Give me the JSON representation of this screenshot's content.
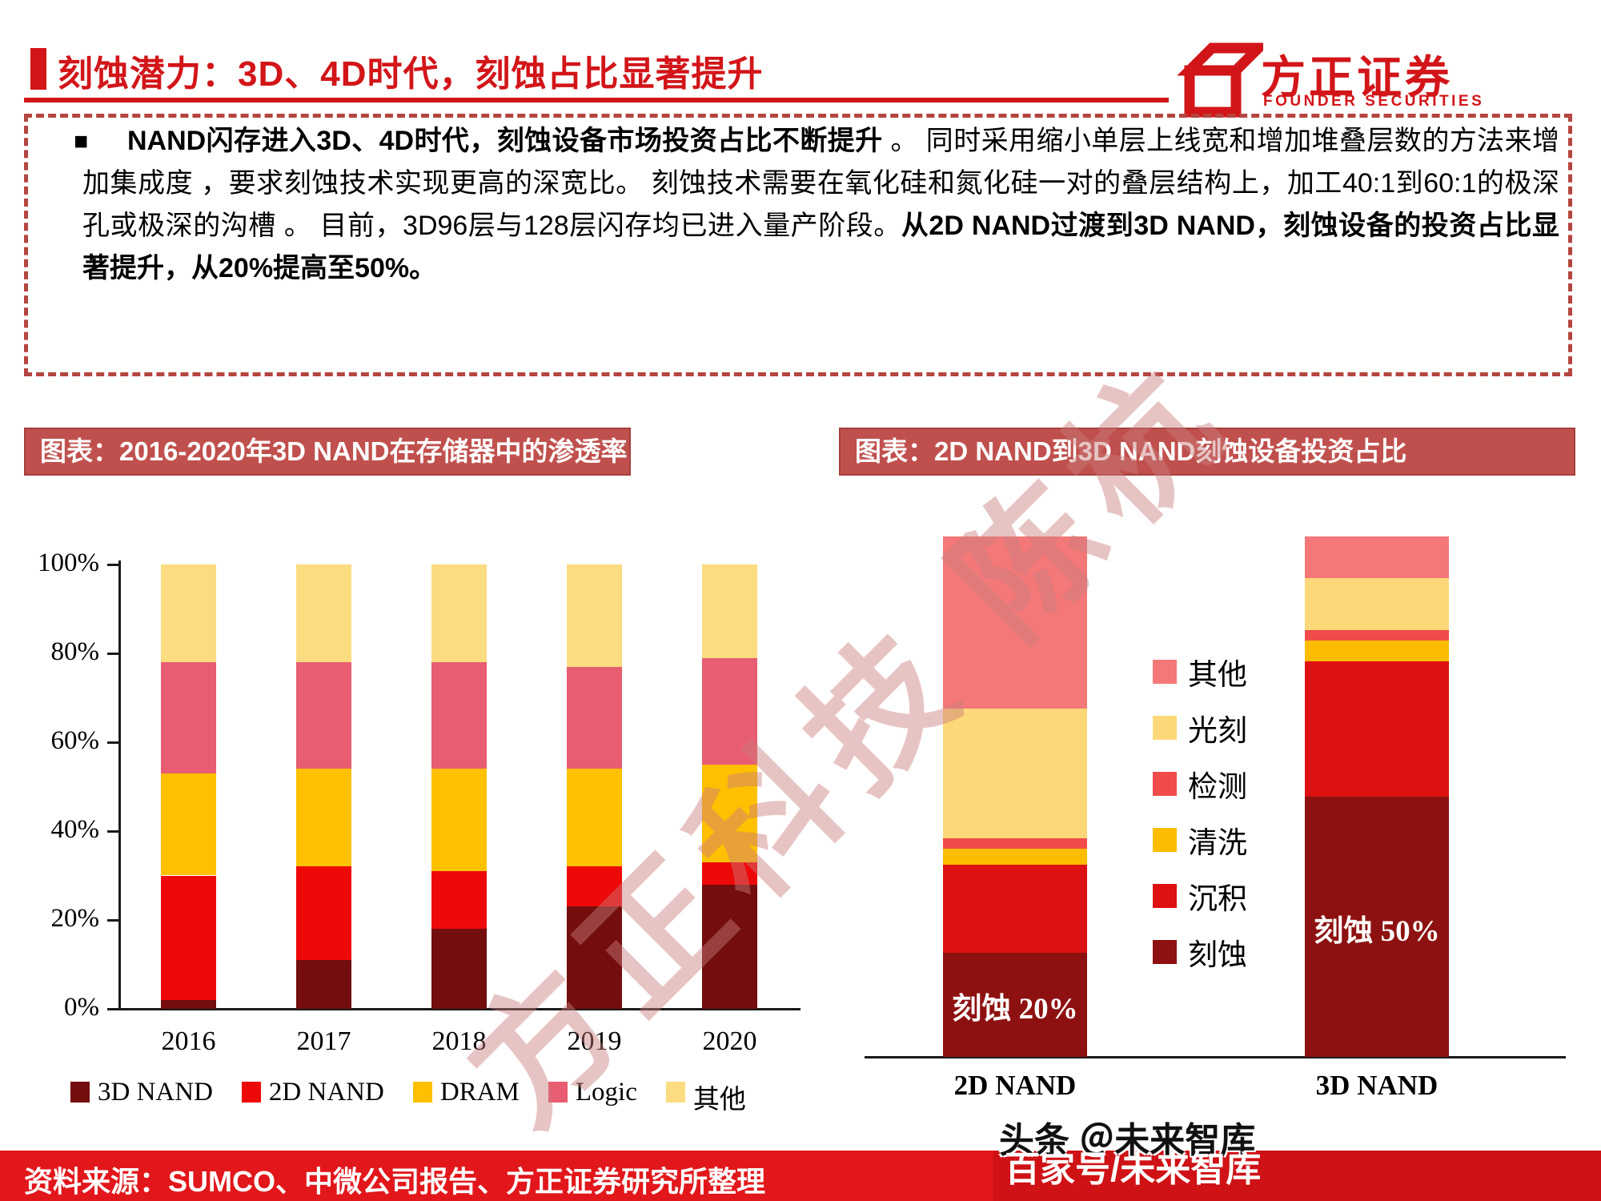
{
  "header": {
    "title": "刻蚀潜力：3D、4D时代，刻蚀占比显著提升",
    "logo": {
      "name_cn": "方正证券",
      "name_en": "FOUNDER SECURITIES"
    }
  },
  "summary": {
    "bullet": "■",
    "spans": [
      {
        "text": "NAND闪存进入3D、4D时代，刻蚀设备市场投资占比不断提升",
        "bold": true
      },
      {
        "text": " 。 同时采用缩小单层上线宽和增加堆叠层数的方法来增加集成度 ，要求刻蚀技术实现更高的深宽比。 刻蚀技术需要在氧化硅和氮化硅一对的叠层结构上，加工40:1到60:1的极深孔或极深的沟槽 。 目前，3D96层与128层闪存均已进入量产阶段。",
        "bold": false
      },
      {
        "text": "从2D NAND过渡到3D NAND，刻蚀设备的投资占比显著提升，从20%提高至50%。",
        "bold": true
      }
    ]
  },
  "chart_data": [
    {
      "type": "bar",
      "stacked": true,
      "title": "图表：2016-2020年3D NAND在存储器中的渗透率",
      "categories": [
        "2016",
        "2017",
        "2018",
        "2019",
        "2020"
      ],
      "series": [
        {
          "name": "3D NAND",
          "color": "#740D0D",
          "values": [
            2,
            11,
            18,
            23,
            28
          ]
        },
        {
          "name": "2D NAND",
          "color": "#EE0909",
          "values": [
            28,
            21,
            13,
            9,
            5
          ]
        },
        {
          "name": "DRAM",
          "color": "#FFC000",
          "values": [
            23,
            22,
            23,
            22,
            22
          ]
        },
        {
          "name": "Logic",
          "color": "#E85D72",
          "values": [
            25,
            24,
            24,
            23,
            24
          ]
        },
        {
          "name": "其他",
          "color": "#FCDC80",
          "values": [
            22,
            22,
            22,
            23,
            21
          ]
        }
      ],
      "ylim": [
        0,
        100
      ],
      "yticks": [
        0,
        20,
        40,
        60,
        80,
        100
      ],
      "ytick_labels": [
        "0%",
        "20%",
        "40%",
        "60%",
        "80%",
        "100%"
      ],
      "legend_position": "bottom",
      "grid": false
    },
    {
      "type": "bar",
      "stacked": true,
      "title": "图表：2D NAND到3D NAND刻蚀设备投资占比",
      "categories": [
        "2D NAND",
        "3D NAND"
      ],
      "series": [
        {
          "name": "刻蚀",
          "color": "#8E1111",
          "values": [
            20,
            50
          ]
        },
        {
          "name": "沉积",
          "color": "#DD1111",
          "values": [
            17,
            26
          ]
        },
        {
          "name": "清洗",
          "color": "#FCBD00",
          "values": [
            3,
            4
          ]
        },
        {
          "name": "检测",
          "color": "#F14B4B",
          "values": [
            2,
            2
          ]
        },
        {
          "name": "光刻",
          "color": "#FCD878",
          "values": [
            25,
            10
          ]
        },
        {
          "name": "其他",
          "color": "#F47878",
          "values": [
            33,
            8
          ]
        }
      ],
      "bar_labels": [
        "刻蚀 20%",
        "刻蚀 50%"
      ],
      "legend_order": [
        "其他",
        "光刻",
        "检测",
        "清洗",
        "沉积",
        "刻蚀"
      ],
      "legend_position": "center-between-bars",
      "ylim": [
        0,
        100
      ],
      "grid": false
    }
  ],
  "watermarks": {
    "diagonal": "方正科技 陈杭",
    "toutiao": "头条 ＠未来智库",
    "baijia": "百家号/未来智库"
  },
  "footer": {
    "source": "资料来源：SUMCO、中微公司报告、方正证券研究所整理"
  },
  "colors": {
    "brand_red": "#D21519",
    "band_bg": "#C0504D",
    "footer_red": "#E2171B"
  }
}
